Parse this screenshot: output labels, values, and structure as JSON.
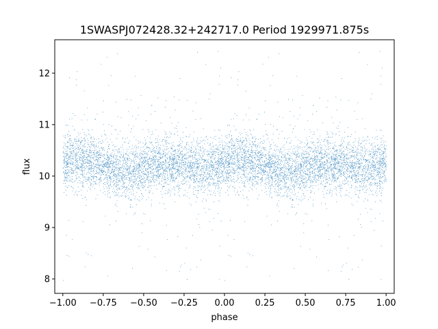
{
  "chart_data": {
    "type": "scatter",
    "title": "1SWASPJ072428.32+242717.0 Period 1929971.875s",
    "xlabel": "phase",
    "ylabel": "flux",
    "xlim": [
      -1.05,
      1.05
    ],
    "ylim": [
      7.72,
      12.65
    ],
    "xticks": [
      -1.0,
      -0.75,
      -0.5,
      -0.25,
      0.0,
      0.25,
      0.5,
      0.75,
      1.0
    ],
    "xtick_labels": [
      "−1.00",
      "−0.75",
      "−0.50",
      "−0.25",
      "0.00",
      "0.25",
      "0.50",
      "0.75",
      "1.00"
    ],
    "yticks": [
      8,
      9,
      10,
      11,
      12
    ],
    "ytick_labels": [
      "8",
      "9",
      "10",
      "11",
      "12"
    ],
    "grid": false,
    "marker_color": "#1f77b4",
    "series": [
      {
        "description_points": "phase-folded photometry; points repeat with period 1 in phase",
        "x_range": [
          -1.0,
          1.0
        ],
        "y_center": 10.2,
        "y_core_range": [
          9.6,
          10.9
        ],
        "y_full_range": [
          7.95,
          12.45
        ],
        "n_points": 9000
      }
    ]
  }
}
